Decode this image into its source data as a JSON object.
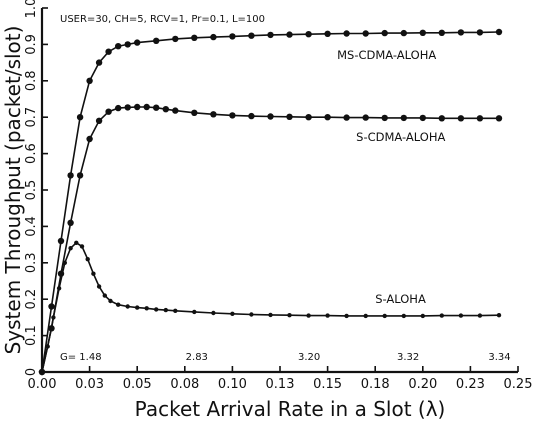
{
  "chart_data": {
    "type": "line",
    "title": "",
    "annotation": "USER=30, CH=5, RCV=1, Pr=0.1, L=100",
    "xlabel": "Packet Arrival Rate in a Slot (λ)",
    "ylabel": "System Throughput (packet/slot)",
    "xlim": [
      0,
      0.25
    ],
    "ylim": [
      0,
      1.0
    ],
    "x_ticks": [
      "0.00",
      "0.03",
      "0.05",
      "0.08",
      "0.10",
      "0.13",
      "0.15",
      "0.18",
      "0.20",
      "0.23",
      "0.25"
    ],
    "x_tick_values": [
      0.0,
      0.025,
      0.05,
      0.075,
      0.1,
      0.125,
      0.15,
      0.175,
      0.2,
      0.225,
      0.25
    ],
    "y_ticks": [
      "0",
      "0.1",
      "0.2",
      "0.3",
      "0.4",
      "0.5",
      "0.6",
      "0.7",
      "0.8",
      "0.9",
      "1.0"
    ],
    "y_tick_values": [
      0,
      0.1,
      0.2,
      0.3,
      0.4,
      0.5,
      0.6,
      0.7,
      0.8,
      0.9,
      1.0
    ],
    "g_annotations": [
      {
        "x": 0.0,
        "label": "G= 1.48"
      },
      {
        "x": 0.066,
        "label": "2.83"
      },
      {
        "x": 0.125,
        "label": "3.20"
      },
      {
        "x": 0.177,
        "label": "3.32"
      },
      {
        "x": 0.225,
        "label": "3.34"
      }
    ],
    "series": [
      {
        "name": "MS-CDMA-ALOHA",
        "x": [
          0.0,
          0.005,
          0.01,
          0.015,
          0.02,
          0.025,
          0.03,
          0.035,
          0.04,
          0.045,
          0.05,
          0.06,
          0.07,
          0.08,
          0.09,
          0.1,
          0.11,
          0.12,
          0.13,
          0.14,
          0.15,
          0.16,
          0.17,
          0.18,
          0.19,
          0.2,
          0.21,
          0.22,
          0.23,
          0.24
        ],
        "y": [
          0.0,
          0.18,
          0.36,
          0.54,
          0.7,
          0.8,
          0.85,
          0.88,
          0.895,
          0.9,
          0.905,
          0.91,
          0.915,
          0.918,
          0.92,
          0.922,
          0.924,
          0.926,
          0.927,
          0.928,
          0.929,
          0.93,
          0.93,
          0.931,
          0.931,
          0.932,
          0.932,
          0.933,
          0.933,
          0.934
        ]
      },
      {
        "name": "S-CDMA-ALOHA",
        "x": [
          0.0,
          0.005,
          0.01,
          0.015,
          0.02,
          0.025,
          0.03,
          0.035,
          0.04,
          0.045,
          0.05,
          0.055,
          0.06,
          0.065,
          0.07,
          0.08,
          0.09,
          0.1,
          0.11,
          0.12,
          0.13,
          0.14,
          0.15,
          0.16,
          0.17,
          0.18,
          0.19,
          0.2,
          0.21,
          0.22,
          0.23,
          0.24
        ],
        "y": [
          0.0,
          0.12,
          0.27,
          0.41,
          0.54,
          0.64,
          0.69,
          0.715,
          0.725,
          0.727,
          0.728,
          0.728,
          0.726,
          0.722,
          0.718,
          0.712,
          0.708,
          0.705,
          0.703,
          0.702,
          0.701,
          0.7,
          0.7,
          0.699,
          0.699,
          0.698,
          0.698,
          0.698,
          0.697,
          0.697,
          0.697,
          0.697
        ]
      },
      {
        "name": "S-ALOHA",
        "x": [
          0.0,
          0.003,
          0.006,
          0.009,
          0.012,
          0.015,
          0.018,
          0.021,
          0.024,
          0.027,
          0.03,
          0.033,
          0.036,
          0.04,
          0.045,
          0.05,
          0.055,
          0.06,
          0.065,
          0.07,
          0.08,
          0.09,
          0.1,
          0.11,
          0.12,
          0.13,
          0.14,
          0.15,
          0.16,
          0.17,
          0.18,
          0.19,
          0.2,
          0.21,
          0.22,
          0.23,
          0.24
        ],
        "y": [
          0.0,
          0.07,
          0.15,
          0.23,
          0.3,
          0.34,
          0.355,
          0.345,
          0.31,
          0.27,
          0.235,
          0.21,
          0.195,
          0.185,
          0.18,
          0.177,
          0.175,
          0.172,
          0.17,
          0.168,
          0.165,
          0.162,
          0.16,
          0.158,
          0.157,
          0.156,
          0.155,
          0.155,
          0.154,
          0.154,
          0.154,
          0.154,
          0.154,
          0.155,
          0.155,
          0.155,
          0.156
        ]
      }
    ],
    "grid": false,
    "legend": "inline labels near each curve"
  }
}
